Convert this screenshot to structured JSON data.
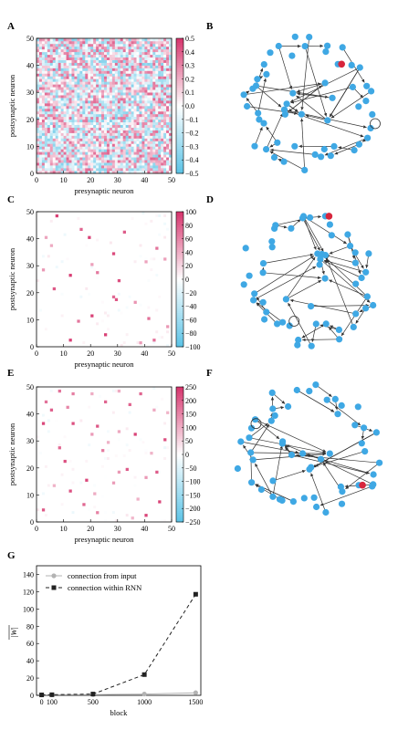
{
  "colors": {
    "node": "#3fa8e4",
    "node_highlight": "#d7263d",
    "edge": "#333333",
    "cmap_low": "#5bc3e6",
    "cmap_mid": "#ffffff",
    "cmap_high": "#d6336c",
    "series_input": "#b3b3b3",
    "series_rnn": "#222222"
  },
  "chart_data": [
    {
      "panel": "A",
      "type": "heatmap",
      "xlabel": "presynaptic neuron",
      "ylabel": "postsynaptic neuron",
      "x_ticks": [
        "0",
        "10",
        "20",
        "30",
        "40",
        "50"
      ],
      "y_ticks": [
        "0",
        "10",
        "20",
        "30",
        "40",
        "50"
      ],
      "colorbar_ticks": [
        "0.5",
        "0.4",
        "0.3",
        "0.2",
        "0.1",
        "0.0",
        "−0.1",
        "−0.2",
        "−0.3",
        "−0.4",
        "−0.5"
      ],
      "vmin": -0.5,
      "vmax": 0.5,
      "size": 50,
      "pattern": "dense"
    },
    {
      "panel": "C",
      "type": "heatmap",
      "xlabel": "presynaptic neuron",
      "ylabel": "postsynaptic neuron",
      "x_ticks": [
        "0",
        "10",
        "20",
        "30",
        "40",
        "50"
      ],
      "y_ticks": [
        "0",
        "10",
        "20",
        "30",
        "40",
        "50"
      ],
      "colorbar_ticks": [
        "100",
        "80",
        "60",
        "40",
        "20",
        "0",
        "−20",
        "−40",
        "−60",
        "−80",
        "−100"
      ],
      "vmin": -100,
      "vmax": 100,
      "size": 50,
      "pattern": "sparse",
      "strong_cells": [
        [
          7,
          48
        ],
        [
          3,
          40
        ],
        [
          19,
          40
        ],
        [
          5,
          37
        ],
        [
          44,
          36
        ],
        [
          28,
          34
        ],
        [
          2,
          28
        ],
        [
          20,
          30
        ],
        [
          22,
          27
        ],
        [
          40,
          31
        ],
        [
          47,
          32
        ],
        [
          12,
          26
        ],
        [
          30,
          24
        ],
        [
          6,
          21
        ],
        [
          28,
          18
        ],
        [
          29,
          17
        ],
        [
          36,
          16
        ],
        [
          20,
          11
        ],
        [
          15,
          9
        ],
        [
          41,
          10
        ],
        [
          48,
          7
        ],
        [
          25,
          4
        ],
        [
          43,
          2
        ],
        [
          12,
          2
        ],
        [
          38,
          1
        ],
        [
          32,
          42
        ],
        [
          16,
          43
        ]
      ]
    },
    {
      "panel": "E",
      "type": "heatmap",
      "xlabel": "presynaptic neuron",
      "ylabel": "postsynaptic neuron",
      "x_ticks": [
        "0",
        "10",
        "20",
        "30",
        "40",
        "50"
      ],
      "y_ticks": [
        "0",
        "10",
        "20",
        "30",
        "40",
        "50"
      ],
      "colorbar_ticks": [
        "250",
        "200",
        "150",
        "100",
        "50",
        "0",
        "−50",
        "−100",
        "−150",
        "−200",
        "−250"
      ],
      "vmin": -250,
      "vmax": 250,
      "size": 50,
      "pattern": "sparse",
      "strong_cells": [
        [
          8,
          48
        ],
        [
          13,
          47
        ],
        [
          20,
          47
        ],
        [
          30,
          48
        ],
        [
          38,
          47
        ],
        [
          3,
          44
        ],
        [
          5,
          41
        ],
        [
          11,
          42
        ],
        [
          25,
          44
        ],
        [
          34,
          43
        ],
        [
          43,
          41
        ],
        [
          48,
          40
        ],
        [
          2,
          36
        ],
        [
          13,
          36
        ],
        [
          22,
          35
        ],
        [
          20,
          32
        ],
        [
          30,
          33
        ],
        [
          36,
          32
        ],
        [
          47,
          30
        ],
        [
          8,
          27
        ],
        [
          24,
          26
        ],
        [
          30,
          18
        ],
        [
          33,
          19
        ],
        [
          18,
          15
        ],
        [
          28,
          14
        ],
        [
          40,
          16
        ],
        [
          44,
          18
        ],
        [
          6,
          13
        ],
        [
          12,
          11
        ],
        [
          21,
          10
        ],
        [
          45,
          7
        ],
        [
          37,
          8
        ],
        [
          2,
          4
        ],
        [
          22,
          3
        ],
        [
          40,
          2
        ],
        [
          35,
          1
        ],
        [
          17,
          6
        ],
        [
          42,
          25
        ],
        [
          10,
          22
        ],
        [
          26,
          29
        ]
      ]
    },
    {
      "panel": "G",
      "type": "line",
      "xlabel": "block",
      "ylabel": "|W|",
      "x": [
        0,
        100,
        500,
        1000,
        1500
      ],
      "x_ticks": [
        "0",
        "100",
        "500",
        "1000",
        "1500"
      ],
      "y_ticks": [
        "0",
        "20",
        "40",
        "60",
        "80",
        "100",
        "120",
        "140"
      ],
      "ylim": [
        0,
        150
      ],
      "xlim": [
        -50,
        1550
      ],
      "legend_placement": "top-left",
      "series": [
        {
          "name": "connection from input",
          "values": [
            0.5,
            0.6,
            0.8,
            1.5,
            3.0
          ],
          "style": "solid-circle"
        },
        {
          "name": "connection within RNN",
          "values": [
            0.5,
            0.7,
            1.5,
            24,
            117
          ],
          "style": "dashed-square"
        }
      ]
    }
  ],
  "panels": [
    "A",
    "B",
    "C",
    "D",
    "E",
    "F",
    "G"
  ],
  "networks": [
    {
      "panel": "B",
      "nodes": 44,
      "highlight": true,
      "self_loop": true
    },
    {
      "panel": "D",
      "nodes": 44,
      "highlight": true,
      "self_loop": true
    },
    {
      "panel": "F",
      "nodes": 44,
      "highlight": true,
      "self_loop": true
    }
  ]
}
